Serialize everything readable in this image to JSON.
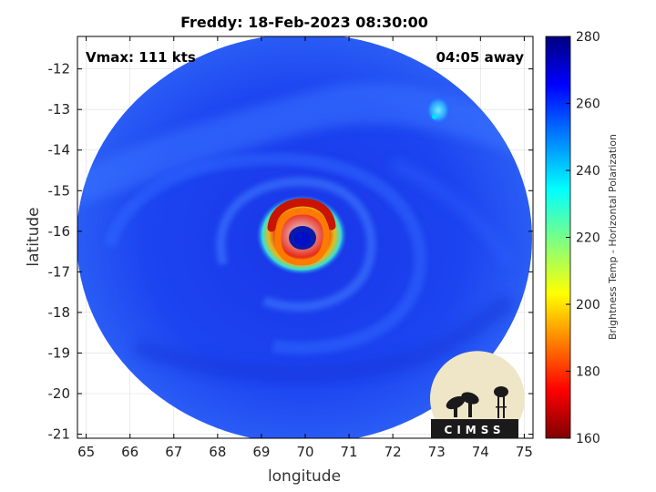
{
  "chart_data": {
    "type": "heatmap",
    "title": "Freddy: 18-Feb-2023 08:30:00",
    "xlabel": "longitude",
    "ylabel": "latitude",
    "xlim": [
      64.8,
      75.2
    ],
    "ylim": [
      -21.1,
      -11.2
    ],
    "x_ticks": [
      "65",
      "66",
      "67",
      "68",
      "69",
      "70",
      "71",
      "72",
      "73",
      "74",
      "75"
    ],
    "y_ticks": [
      "-12",
      "-13",
      "-14",
      "-15",
      "-16",
      "-17",
      "-18",
      "-19",
      "-20",
      "-21"
    ],
    "grid": true,
    "annotations": {
      "top_left": "Vmax: 111 kts",
      "top_right": "04:05 away"
    },
    "colorbar": {
      "label": "Brightness Temp - Horizontal Polarization",
      "range": [
        160,
        280
      ],
      "ticks": [
        "280",
        "260",
        "240",
        "220",
        "200",
        "180",
        "160"
      ],
      "colormap": "jet"
    },
    "features": {
      "swath_center": [
        70.0,
        -16.15
      ],
      "eye_center": [
        69.85,
        -16.1
      ],
      "background_value": 258,
      "eyewall_min_value": 180,
      "eye_value": 255,
      "secondary_convection_center": [
        73.1,
        -12.9
      ]
    },
    "logo_text": "CIMSS"
  }
}
